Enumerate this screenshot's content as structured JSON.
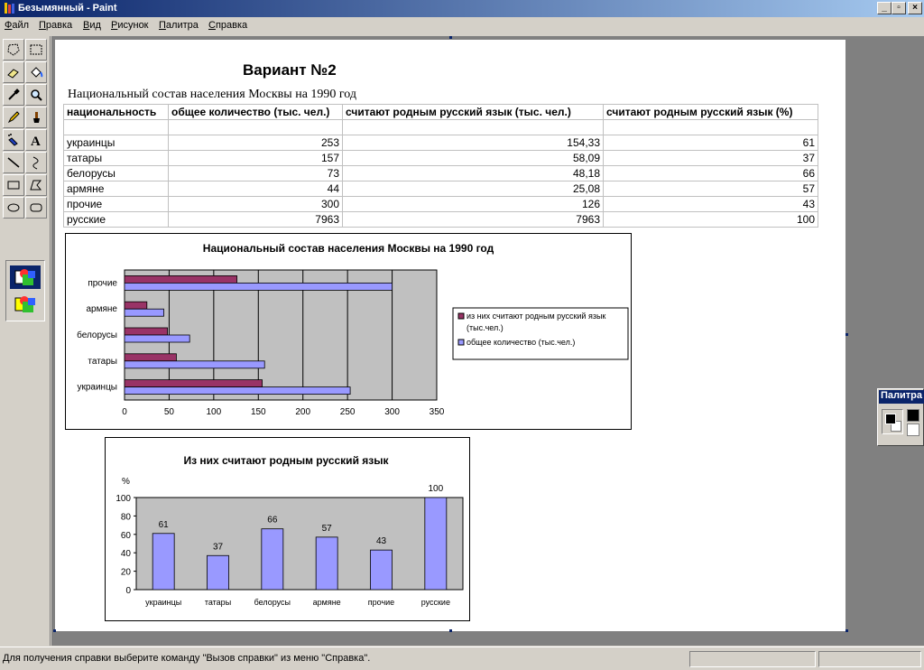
{
  "window": {
    "title": "Безымянный - Paint"
  },
  "menu": [
    "Файл",
    "Правка",
    "Вид",
    "Рисунок",
    "Палитра",
    "Справка"
  ],
  "menu_underline": [
    "Ф",
    "П",
    "В",
    "Р",
    "П",
    "С"
  ],
  "toolbox": {
    "tools": [
      "free-select",
      "rect-select",
      "eraser",
      "fill",
      "color-picker",
      "magnifier",
      "pencil",
      "brush",
      "airbrush",
      "text",
      "line",
      "curve",
      "rectangle",
      "polygon",
      "ellipse",
      "rounded-rectangle"
    ]
  },
  "document": {
    "heading": "Вариант №2",
    "subtitle": "Национальный состав населения Москвы на 1990 год",
    "table": {
      "headers": [
        "национальность",
        "общее количество (тыс. чел.)",
        "считают родным русский язык (тыс. чел.)",
        "считают родным русский язык (%)"
      ],
      "rows": [
        [
          "украинцы",
          "253",
          "154,33",
          "61"
        ],
        [
          "татары",
          "157",
          "58,09",
          "37"
        ],
        [
          "белорусы",
          "73",
          "48,18",
          "66"
        ],
        [
          "армяне",
          "44",
          "25,08",
          "57"
        ],
        [
          "прочие",
          "300",
          "126",
          "43"
        ],
        [
          "русские",
          "7963",
          "7963",
          "100"
        ]
      ]
    }
  },
  "chart_data": [
    {
      "type": "bar",
      "orientation": "horizontal",
      "title": "Национальный состав населения Москвы на 1990 год",
      "categories": [
        "украинцы",
        "татары",
        "белорусы",
        "армяне",
        "прочие"
      ],
      "series": [
        {
          "name": "из них считают родным русский язык (тыс.чел.)",
          "color": "#993366",
          "values": [
            154.33,
            58.09,
            48.18,
            25.08,
            126
          ]
        },
        {
          "name": "общее количество (тыс.чел.)",
          "color": "#9999ff",
          "values": [
            253,
            157,
            73,
            44,
            300
          ]
        }
      ],
      "xlim": [
        0,
        350
      ],
      "xticks": [
        "0",
        "50",
        "100",
        "150",
        "200",
        "250",
        "300",
        "350"
      ],
      "legend_position": "right",
      "plot_bg": "#c0c0c0",
      "grid": true
    },
    {
      "type": "bar",
      "title": "Из них считают родным русский язык",
      "ylabel": "%",
      "categories": [
        "украинцы",
        "татары",
        "белорусы",
        "армяне",
        "прочие",
        "русские"
      ],
      "values": [
        61,
        37,
        66,
        57,
        43,
        100
      ],
      "data_labels": [
        "61",
        "37",
        "66",
        "57",
        "43",
        "100"
      ],
      "ylim": [
        0,
        100
      ],
      "yticks": [
        "0",
        "20",
        "40",
        "60",
        "80",
        "100"
      ],
      "color": "#9999ff",
      "plot_bg": "#c0c0c0"
    }
  ],
  "palette": {
    "title": "Палитра"
  },
  "status": {
    "text": "Для получения справки выберите команду \"Вызов справки\" из меню \"Справка\"."
  }
}
